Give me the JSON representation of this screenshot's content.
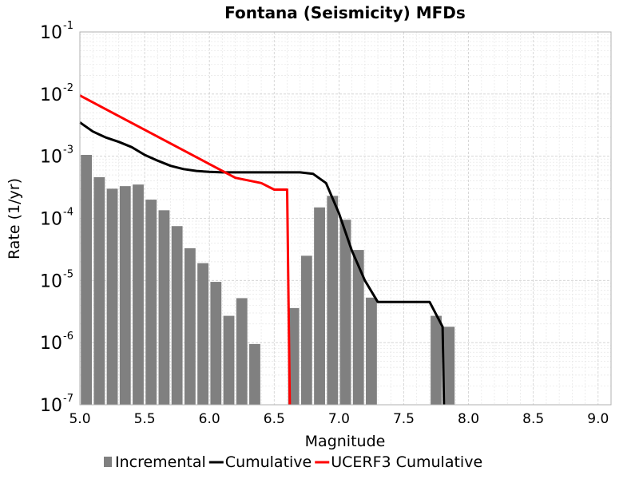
{
  "chart_data": {
    "type": "bar+line",
    "title": "Fontana (Seismicity) MFDs",
    "xlabel": "Magnitude",
    "ylabel": "Rate (1/yr)",
    "xlim": [
      5.0,
      9.1
    ],
    "ylim": [
      1e-07,
      0.1
    ],
    "ylog": true,
    "grid": true,
    "legend_position": "bottom",
    "x_ticks": [
      "5.0",
      "5.5",
      "6.0",
      "6.5",
      "7.0",
      "7.5",
      "8.0",
      "8.5",
      "9.0"
    ],
    "y_ticks": [
      {
        "base": "10",
        "exp": "-7"
      },
      {
        "base": "10",
        "exp": "-6"
      },
      {
        "base": "10",
        "exp": "-5"
      },
      {
        "base": "10",
        "exp": "-4"
      },
      {
        "base": "10",
        "exp": "-3"
      },
      {
        "base": "10",
        "exp": "-2"
      },
      {
        "base": "10",
        "exp": "-1"
      }
    ],
    "series": [
      {
        "name": "Incremental",
        "kind": "bar",
        "color": "#808080",
        "bin_width": 0.1,
        "x": [
          5.05,
          5.15,
          5.25,
          5.35,
          5.45,
          5.55,
          5.65,
          5.75,
          5.85,
          5.95,
          6.05,
          6.15,
          6.25,
          6.35,
          6.65,
          6.75,
          6.85,
          6.95,
          7.05,
          7.15,
          7.25,
          7.75,
          7.85
        ],
        "y": [
          0.00105,
          0.00046,
          0.0003,
          0.00033,
          0.00035,
          0.0002,
          0.000135,
          7.5e-05,
          3.3e-05,
          1.9e-05,
          9.5e-06,
          2.7e-06,
          5.2e-06,
          9.5e-07,
          3.6e-06,
          2.5e-05,
          0.00015,
          0.00023,
          9.5e-05,
          3.1e-05,
          5.3e-06,
          2.7e-06,
          1.8e-06
        ]
      },
      {
        "name": "Cumulative",
        "kind": "line",
        "color": "#000000",
        "x": [
          5.0,
          5.1,
          5.2,
          5.3,
          5.4,
          5.5,
          5.6,
          5.7,
          5.8,
          5.9,
          6.0,
          6.1,
          6.2,
          6.3,
          6.4,
          6.5,
          6.6,
          6.7,
          6.8,
          6.9,
          7.0,
          7.1,
          7.2,
          7.3,
          7.4,
          7.5,
          7.6,
          7.7,
          7.8,
          7.81
        ],
        "y": [
          0.0035,
          0.0025,
          0.002,
          0.0017,
          0.0014,
          0.00105,
          0.00085,
          0.0007,
          0.00062,
          0.00058,
          0.00056,
          0.00055,
          0.00055,
          0.00055,
          0.00055,
          0.00055,
          0.00055,
          0.00055,
          0.00052,
          0.00037,
          0.00012,
          3e-05,
          1e-05,
          4.5e-06,
          4.5e-06,
          4.5e-06,
          4.5e-06,
          4.5e-06,
          1.8e-06,
          1e-07
        ]
      },
      {
        "name": "UCERF3 Cumulative",
        "kind": "line",
        "color": "#ff0000",
        "x": [
          5.0,
          6.2,
          6.4,
          6.5,
          6.6,
          6.62
        ],
        "y": [
          0.0095,
          0.00045,
          0.00037,
          0.00029,
          0.00029,
          1e-07
        ]
      }
    ]
  }
}
